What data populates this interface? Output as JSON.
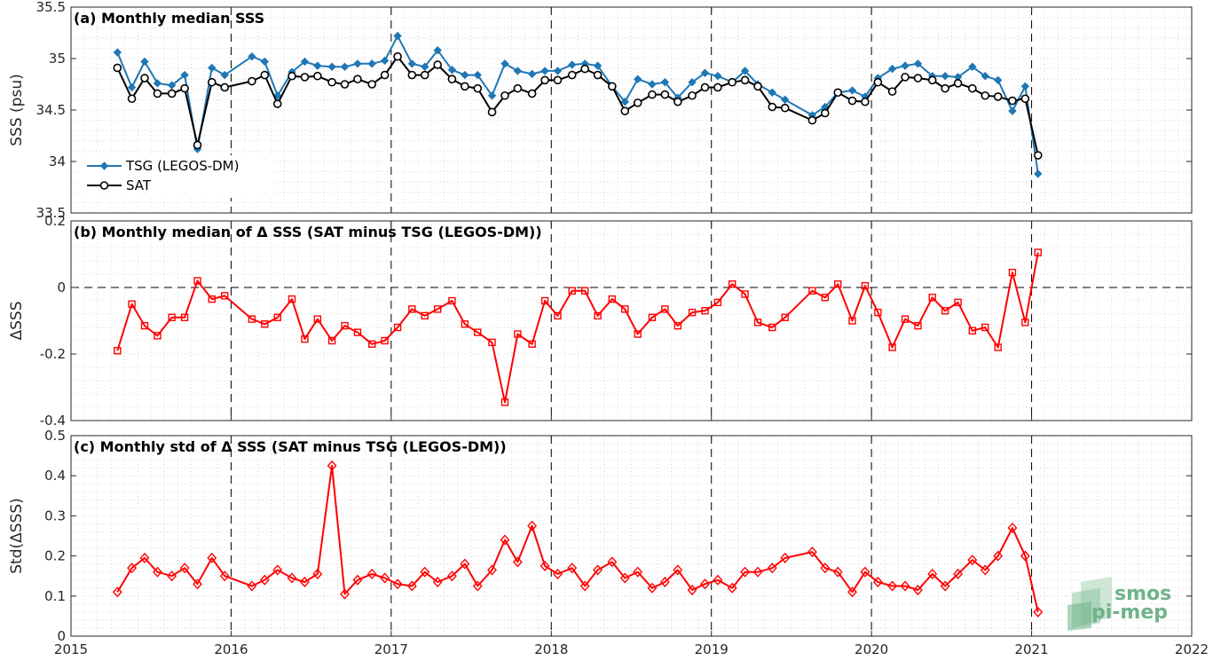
{
  "chart_data": [
    {
      "type": "line",
      "title": "(a) Monthly median SSS",
      "ylabel": "SSS (psu)",
      "xlim": [
        2015,
        2022
      ],
      "ylim": [
        33.5,
        35.5
      ],
      "yticks": [
        "33.5",
        "34",
        "34.5",
        "35",
        "35.5"
      ],
      "xticks": [
        "2015",
        "2016",
        "2017",
        "2018",
        "2019",
        "2020",
        "2021",
        "2022"
      ],
      "grid": "minor dotted",
      "legend_position": "bottom-left",
      "series": [
        {
          "name": "TSG (LEGOS-DM)",
          "color": "#1f77b4",
          "marker": "diamond",
          "x": [
            2015.29,
            2015.38,
            2015.46,
            2015.54,
            2015.63,
            2015.71,
            2015.79,
            2015.88,
            2015.96,
            2016.13,
            2016.21,
            2016.29,
            2016.38,
            2016.46,
            2016.54,
            2016.63,
            2016.71,
            2016.79,
            2016.88,
            2016.96,
            2017.04,
            2017.13,
            2017.21,
            2017.29,
            2017.38,
            2017.46,
            2017.54,
            2017.63,
            2017.71,
            2017.79,
            2017.88,
            2017.96,
            2018.04,
            2018.13,
            2018.21,
            2018.29,
            2018.38,
            2018.46,
            2018.54,
            2018.63,
            2018.71,
            2018.79,
            2018.88,
            2018.96,
            2019.04,
            2019.13,
            2019.21,
            2019.29,
            2019.38,
            2019.46,
            2019.63,
            2019.71,
            2019.79,
            2019.88,
            2019.96,
            2020.04,
            2020.13,
            2020.21,
            2020.29,
            2020.38,
            2020.46,
            2020.54,
            2020.63,
            2020.71,
            2020.79,
            2020.88,
            2020.96,
            2021.04
          ],
          "y": [
            35.06,
            34.72,
            34.97,
            34.76,
            34.74,
            34.84,
            34.12,
            34.91,
            34.84,
            35.02,
            34.97,
            34.64,
            34.87,
            34.97,
            34.93,
            34.92,
            34.92,
            34.95,
            34.95,
            34.98,
            35.22,
            34.95,
            34.92,
            35.08,
            34.89,
            34.84,
            34.84,
            34.64,
            34.95,
            34.88,
            34.85,
            34.88,
            34.88,
            34.94,
            34.95,
            34.93,
            34.73,
            34.58,
            34.8,
            34.75,
            34.77,
            34.62,
            34.77,
            34.86,
            34.83,
            34.77,
            34.88,
            34.75,
            34.67,
            34.6,
            34.45,
            34.53,
            34.67,
            34.69,
            34.63,
            34.81,
            34.9,
            34.93,
            34.95,
            34.83,
            34.83,
            34.82,
            34.92,
            34.83,
            34.79,
            34.49,
            34.73,
            33.88
          ]
        },
        {
          "name": "SAT",
          "color": "#000000",
          "marker": "circle",
          "x": [
            2015.29,
            2015.38,
            2015.46,
            2015.54,
            2015.63,
            2015.71,
            2015.79,
            2015.88,
            2015.96,
            2016.13,
            2016.21,
            2016.29,
            2016.38,
            2016.46,
            2016.54,
            2016.63,
            2016.71,
            2016.79,
            2016.88,
            2016.96,
            2017.04,
            2017.13,
            2017.21,
            2017.29,
            2017.38,
            2017.46,
            2017.54,
            2017.63,
            2017.71,
            2017.79,
            2017.88,
            2017.96,
            2018.04,
            2018.13,
            2018.21,
            2018.29,
            2018.38,
            2018.46,
            2018.54,
            2018.63,
            2018.71,
            2018.79,
            2018.88,
            2018.96,
            2019.04,
            2019.13,
            2019.21,
            2019.29,
            2019.38,
            2019.46,
            2019.63,
            2019.71,
            2019.79,
            2019.88,
            2019.96,
            2020.04,
            2020.13,
            2020.21,
            2020.29,
            2020.38,
            2020.46,
            2020.54,
            2020.63,
            2020.71,
            2020.79,
            2020.88,
            2020.96,
            2021.04
          ],
          "y": [
            34.91,
            34.61,
            34.81,
            34.66,
            34.66,
            34.71,
            34.16,
            34.77,
            34.72,
            34.78,
            34.84,
            34.56,
            34.83,
            34.82,
            34.83,
            34.77,
            34.75,
            34.8,
            34.75,
            34.84,
            35.02,
            34.84,
            34.84,
            34.94,
            34.8,
            34.73,
            34.71,
            34.48,
            34.64,
            34.71,
            34.66,
            34.79,
            34.79,
            34.84,
            34.9,
            34.84,
            34.73,
            34.49,
            34.57,
            34.65,
            34.65,
            34.58,
            34.64,
            34.72,
            34.72,
            34.77,
            34.79,
            34.73,
            34.53,
            34.52,
            34.4,
            34.47,
            34.67,
            34.59,
            34.58,
            34.77,
            34.68,
            34.82,
            34.81,
            34.79,
            34.71,
            34.76,
            34.71,
            34.64,
            34.63,
            34.59,
            34.61,
            34.06
          ]
        }
      ]
    },
    {
      "type": "line",
      "title": "(b) Monthly median of Δ SSS (SAT minus TSG (LEGOS-DM))",
      "ylabel": "ΔSSS",
      "xlim": [
        2015,
        2022
      ],
      "ylim": [
        -0.4,
        0.2
      ],
      "yticks": [
        "-0.4",
        "-0.2",
        "0",
        "0.2"
      ],
      "xticks": [
        "2015",
        "2016",
        "2017",
        "2018",
        "2019",
        "2020",
        "2021",
        "2022"
      ],
      "grid": "minor dotted",
      "reference_line": 0,
      "series": [
        {
          "color": "#ff0000",
          "marker": "square",
          "x": [
            2015.29,
            2015.38,
            2015.46,
            2015.54,
            2015.63,
            2015.71,
            2015.79,
            2015.88,
            2015.96,
            2016.13,
            2016.21,
            2016.29,
            2016.38,
            2016.46,
            2016.54,
            2016.63,
            2016.71,
            2016.79,
            2016.88,
            2016.96,
            2017.04,
            2017.13,
            2017.21,
            2017.29,
            2017.38,
            2017.46,
            2017.54,
            2017.63,
            2017.71,
            2017.79,
            2017.88,
            2017.96,
            2018.04,
            2018.13,
            2018.21,
            2018.29,
            2018.38,
            2018.46,
            2018.54,
            2018.63,
            2018.71,
            2018.79,
            2018.88,
            2018.96,
            2019.04,
            2019.13,
            2019.21,
            2019.29,
            2019.38,
            2019.46,
            2019.63,
            2019.71,
            2019.79,
            2019.88,
            2019.96,
            2020.04,
            2020.13,
            2020.21,
            2020.29,
            2020.38,
            2020.46,
            2020.54,
            2020.63,
            2020.71,
            2020.79,
            2020.88,
            2020.96,
            2021.04
          ],
          "y": [
            -0.19,
            -0.05,
            -0.115,
            -0.145,
            -0.09,
            -0.09,
            0.02,
            -0.035,
            -0.025,
            -0.095,
            -0.11,
            -0.09,
            -0.035,
            -0.155,
            -0.095,
            -0.16,
            -0.115,
            -0.135,
            -0.17,
            -0.16,
            -0.12,
            -0.065,
            -0.085,
            -0.065,
            -0.04,
            -0.11,
            -0.135,
            -0.165,
            -0.345,
            -0.14,
            -0.17,
            -0.04,
            -0.085,
            -0.01,
            -0.01,
            -0.085,
            -0.035,
            -0.065,
            -0.14,
            -0.09,
            -0.065,
            -0.115,
            -0.075,
            -0.07,
            -0.045,
            0.01,
            -0.02,
            -0.105,
            -0.12,
            -0.09,
            -0.01,
            -0.03,
            0.01,
            -0.1,
            0.005,
            -0.075,
            -0.18,
            -0.095,
            -0.115,
            -0.03,
            -0.07,
            -0.045,
            -0.13,
            -0.12,
            -0.18,
            0.045,
            -0.105,
            0.105
          ]
        }
      ]
    },
    {
      "type": "line",
      "title": "(c) Monthly std of Δ SSS (SAT minus TSG (LEGOS-DM))",
      "ylabel": "Std(ΔSSS)",
      "xlim": [
        2015,
        2022
      ],
      "ylim": [
        0,
        0.5
      ],
      "yticks": [
        "0",
        "0.1",
        "0.2",
        "0.3",
        "0.4",
        "0.5"
      ],
      "xticks": [
        "2015",
        "2016",
        "2017",
        "2018",
        "2019",
        "2020",
        "2021",
        "2022"
      ],
      "grid": "minor dotted",
      "series": [
        {
          "color": "#ff0000",
          "marker": "diamond-open",
          "x": [
            2015.29,
            2015.38,
            2015.46,
            2015.54,
            2015.63,
            2015.71,
            2015.79,
            2015.88,
            2015.96,
            2016.13,
            2016.21,
            2016.29,
            2016.38,
            2016.46,
            2016.54,
            2016.63,
            2016.71,
            2016.79,
            2016.88,
            2016.96,
            2017.04,
            2017.13,
            2017.21,
            2017.29,
            2017.38,
            2017.46,
            2017.54,
            2017.63,
            2017.71,
            2017.79,
            2017.88,
            2017.96,
            2018.04,
            2018.13,
            2018.21,
            2018.29,
            2018.38,
            2018.46,
            2018.54,
            2018.63,
            2018.71,
            2018.79,
            2018.88,
            2018.96,
            2019.04,
            2019.13,
            2019.21,
            2019.29,
            2019.38,
            2019.46,
            2019.63,
            2019.71,
            2019.79,
            2019.88,
            2019.96,
            2020.04,
            2020.13,
            2020.21,
            2020.29,
            2020.38,
            2020.46,
            2020.54,
            2020.63,
            2020.71,
            2020.79,
            2020.88,
            2020.96,
            2021.04
          ],
          "y": [
            0.11,
            0.17,
            0.195,
            0.16,
            0.15,
            0.17,
            0.13,
            0.195,
            0.15,
            0.125,
            0.14,
            0.165,
            0.145,
            0.135,
            0.155,
            0.425,
            0.105,
            0.14,
            0.155,
            0.145,
            0.13,
            0.125,
            0.16,
            0.135,
            0.15,
            0.18,
            0.125,
            0.165,
            0.24,
            0.185,
            0.275,
            0.175,
            0.155,
            0.17,
            0.125,
            0.165,
            0.185,
            0.145,
            0.16,
            0.12,
            0.135,
            0.165,
            0.115,
            0.13,
            0.14,
            0.12,
            0.16,
            0.16,
            0.17,
            0.195,
            0.21,
            0.17,
            0.16,
            0.11,
            0.16,
            0.135,
            0.125,
            0.125,
            0.115,
            0.155,
            0.125,
            0.155,
            0.19,
            0.165,
            0.2,
            0.27,
            0.2,
            0.06
          ]
        }
      ]
    }
  ],
  "logo": {
    "line1": "smos",
    "line2": "pi-mep",
    "color": "#6fb38a"
  }
}
